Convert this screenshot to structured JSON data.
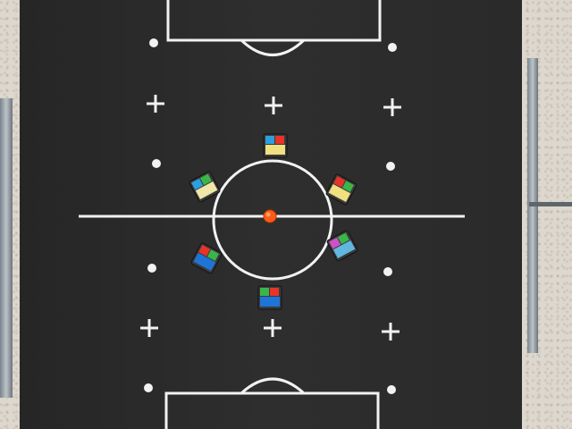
{
  "scene": {
    "description_free": true,
    "colors": {
      "field": "#2b2b2b",
      "line": "#f2f2f2",
      "ball": "#ff5a1a",
      "floor": "#ddd7cd",
      "rail": "#9aa3aa"
    },
    "robots": [
      {
        "id": "robot-top",
        "top_colors": [
          "#2aa0e0",
          "#e8332a"
        ],
        "base": "#f0e080"
      },
      {
        "id": "robot-upper-left",
        "top_colors": [
          "#2aa0e0",
          "#3ab54a"
        ],
        "base": "#f0e6a8"
      },
      {
        "id": "robot-upper-right",
        "top_colors": [
          "#e8332a",
          "#3ab54a"
        ],
        "base": "#f0e080"
      },
      {
        "id": "robot-lower-left",
        "top_colors": [
          "#e8332a",
          "#3ab54a"
        ],
        "base": "#1f74d8"
      },
      {
        "id": "robot-lower-right",
        "top_colors": [
          "#d050c8",
          "#3ab54a"
        ],
        "base": "#60b8e0"
      },
      {
        "id": "robot-bottom",
        "top_colors": [
          "#3ab54a",
          "#e8332a"
        ],
        "base": "#1f74d8"
      }
    ]
  }
}
